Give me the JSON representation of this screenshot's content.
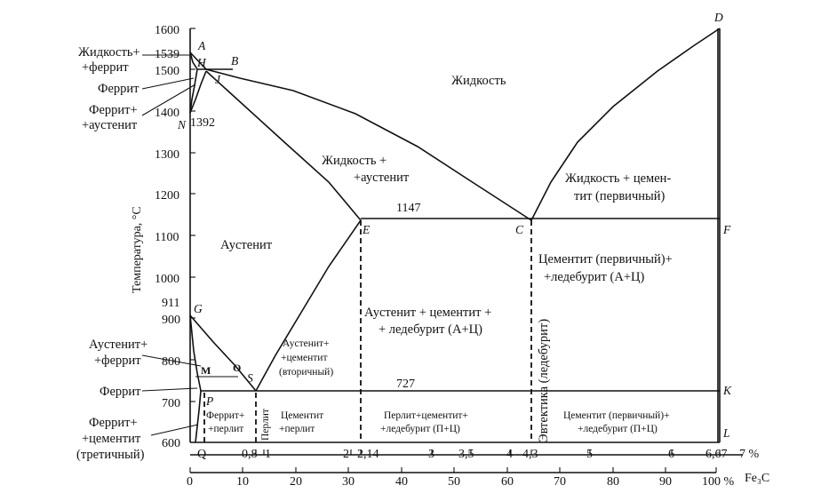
{
  "axes": {
    "y_label": "Температура, °С",
    "y_ticks": [
      "1600",
      "1500",
      "1400",
      "1300",
      "1200",
      "1100",
      "1000",
      "900",
      "800",
      "700",
      "600"
    ],
    "extra_temps": [
      "1539",
      "1392",
      "911",
      "1147",
      "727"
    ],
    "carbon_ticks": [
      "Q",
      "0,8",
      "1",
      "2",
      "2,14",
      "3",
      "3,5",
      "4",
      "4,3",
      "5",
      "6",
      "6,67",
      "7 %"
    ],
    "fe3c_ticks": [
      "0",
      "10",
      "20",
      "30",
      "40",
      "50",
      "60",
      "70",
      "80",
      "90",
      "100 %"
    ],
    "fe3c_label": "Fe₃C"
  },
  "points": {
    "A": "A",
    "B": "B",
    "H": "H",
    "J": "J",
    "N": "N",
    "D": "D",
    "E": "E",
    "C": "C",
    "F": "F",
    "G": "G",
    "M": "M",
    "O": "O",
    "S": "S",
    "P": "P",
    "K": "K",
    "L": "L"
  },
  "left_labels": {
    "liquid_ferrite": [
      "Жидкость+",
      "+феррит"
    ],
    "ferrite": "Феррит",
    "ferrite_austenite": [
      "Феррит+",
      "+аустенит"
    ],
    "austenite_ferrite": [
      "Аустенит+",
      "+феррит"
    ],
    "ferrite_low": "Феррит",
    "ferrite_cementite3": [
      "Феррит+",
      "+цементит",
      "(третичный)"
    ]
  },
  "regions": {
    "liquid": "Жидкость",
    "liquid_austenite": [
      "Жидкость +",
      "+аустенит"
    ],
    "liquid_cementite": [
      "Жидкость + цемен-",
      "тит (первичный)"
    ],
    "austenite": "Аустенит",
    "cementite_ledeburite": [
      "Цементит (первичный)+",
      "+ледебурит (А+Ц)"
    ],
    "austenite_cementite_ledeburite": [
      "Аустенит + цементит +",
      "+ ледебурит (А+Ц)"
    ],
    "austenite_cementite2": [
      "Аустенит+",
      "+цементит",
      "(вторичный)"
    ],
    "eutectic": "Эвтектика (ледебурит)",
    "ferrite_pearlite": [
      "Феррит+",
      "+перлит"
    ],
    "pearlite": "Перлит",
    "cementite_pearlite": [
      "Цементит",
      "+перлит"
    ],
    "pearlite_cementite_ledeburite": [
      "Перлит+цементит+",
      "+ледебурит (П+Ц)"
    ],
    "cementite_ledeburite_pc": [
      "Цементит (первичный)+",
      "+ледебурит (П+Ц)"
    ]
  },
  "colors": {
    "ink": "#111111",
    "background": "#ffffff"
  }
}
